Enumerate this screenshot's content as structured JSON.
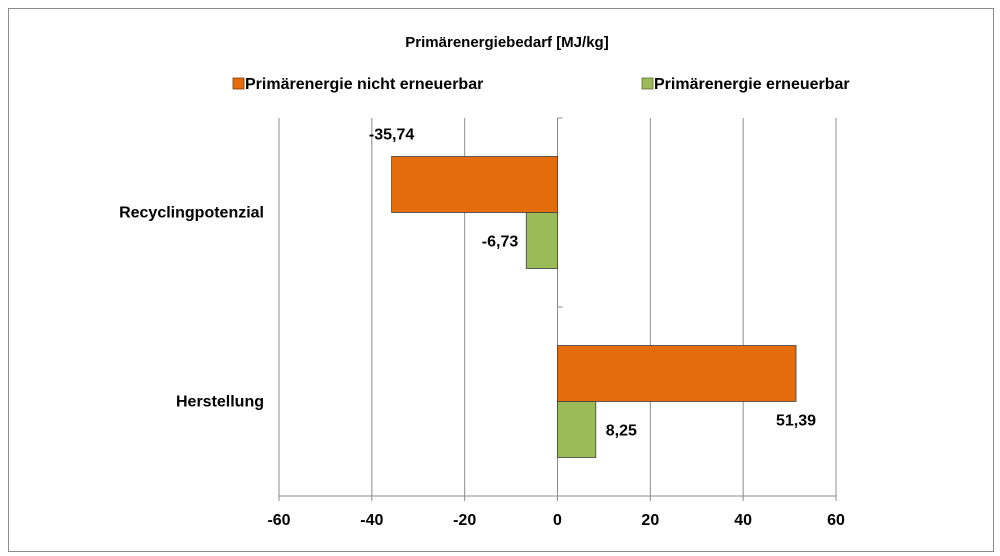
{
  "chart_data": {
    "type": "bar",
    "orientation": "horizontal",
    "title": "Primärenergiebedarf [MJ/kg]",
    "categories": [
      "Recyclingpotenzial",
      "Herstellung"
    ],
    "series": [
      {
        "name": "Primärenergie nicht erneuerbar",
        "values": [
          -35.74,
          51.39
        ],
        "labels": [
          "-35,74",
          "51,39"
        ],
        "color": "#E46C0A"
      },
      {
        "name": "Primärenergie erneuerbar",
        "values": [
          -6.73,
          8.25
        ],
        "labels": [
          "-6,73",
          "8,25"
        ],
        "color": "#9BBB59"
      }
    ],
    "xlim": [
      -60,
      60
    ],
    "xticks": [
      "-60",
      "-40",
      "-20",
      "0",
      "20",
      "40",
      "60"
    ],
    "grid": true,
    "legend_position": "top"
  }
}
